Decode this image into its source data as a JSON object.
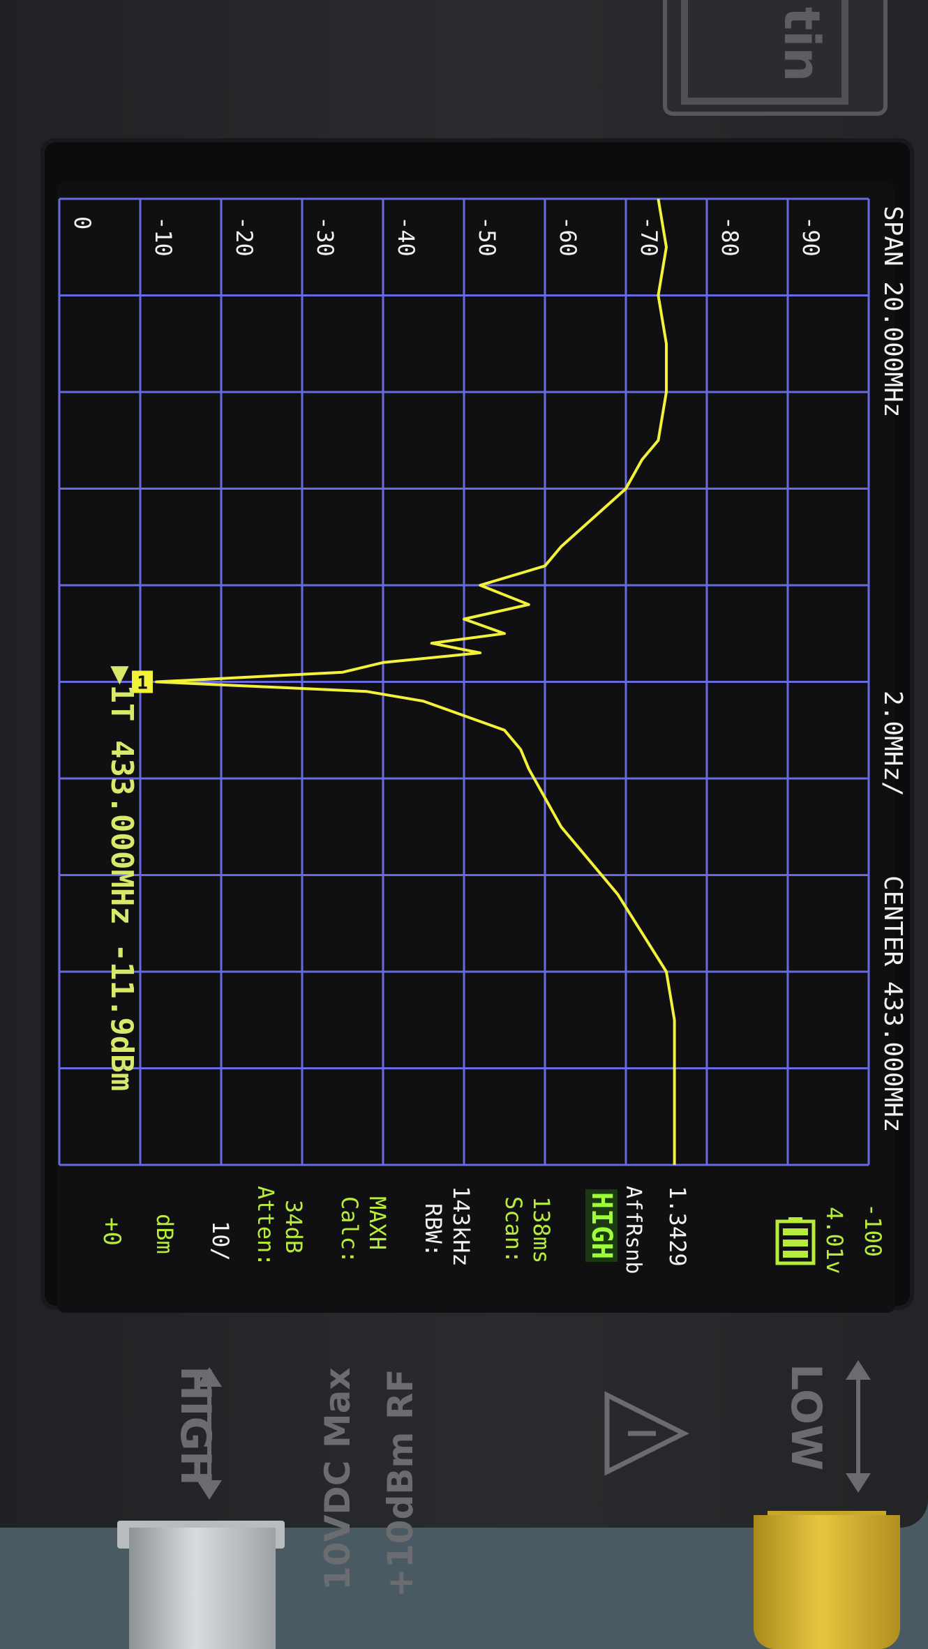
{
  "device": {
    "logo_text": "tin",
    "port_high_label": "HIGH",
    "port_low_label": "LOW",
    "rf_limit": "+10dBm RF",
    "dc_limit": "10VDC Max"
  },
  "screen": {
    "marker_readout": "▶1T 433.000MHz -11.9dBm",
    "marker_number": "1",
    "center": "CENTER 433.000MHz",
    "scale": "2.0MHz/",
    "span": "SPAN 20.000MHz",
    "side_panel": {
      "ref": "+0",
      "unit": "dBm",
      "div": "10/",
      "atten_label": "Atten:",
      "atten_value": "34dB",
      "calc_label": "Calc:",
      "calc_value": "MAXH",
      "rbw_label": "RBW:",
      "rbw_value": "143kHz",
      "scan_label": "Scan:",
      "scan_value": "138ms",
      "mode": "HIGH",
      "avg": "AffRsnb",
      "version": "1.3429",
      "battery_voltage": "4.01v",
      "bottom_ref": "-100"
    },
    "level_labels": [
      "0",
      "-10",
      "-20",
      "-30",
      "-40",
      "-50",
      "-60",
      "-70",
      "-80",
      "-90"
    ]
  },
  "chart_data": {
    "type": "line",
    "x_unit": "MHz",
    "y_unit": "dBm",
    "xlim": [
      423.0,
      443.0
    ],
    "ylim": [
      -100,
      0
    ],
    "series": [
      {
        "color": "#f2f23a",
        "x": [
          423.0,
          424.0,
          425.0,
          426.0,
          427.0,
          427.8,
          428.6,
          429.4,
          430.0,
          430.6,
          431.2,
          431.6,
          432.0,
          432.3,
          432.6,
          432.8,
          433.0,
          433.2,
          433.4,
          433.6,
          433.8,
          434.0,
          434.3,
          434.6,
          435.0,
          435.4,
          435.8,
          436.4,
          437.0,
          437.6,
          438.0,
          439.0,
          440.0,
          441.0,
          442.0,
          443.0
        ],
        "y": [
          -76,
          -76,
          -76,
          -76,
          -75,
          -72,
          -69,
          -65,
          -62,
          -60,
          -58,
          -57,
          -55,
          -50,
          -45,
          -38,
          -12,
          -35,
          -40,
          -52,
          -46,
          -55,
          -50,
          -58,
          -52,
          -60,
          -62,
          -66,
          -70,
          -72,
          -74,
          -75,
          -75,
          -74,
          -75,
          -74
        ]
      }
    ],
    "marker": {
      "x": 433.0,
      "y": -11.9
    }
  }
}
